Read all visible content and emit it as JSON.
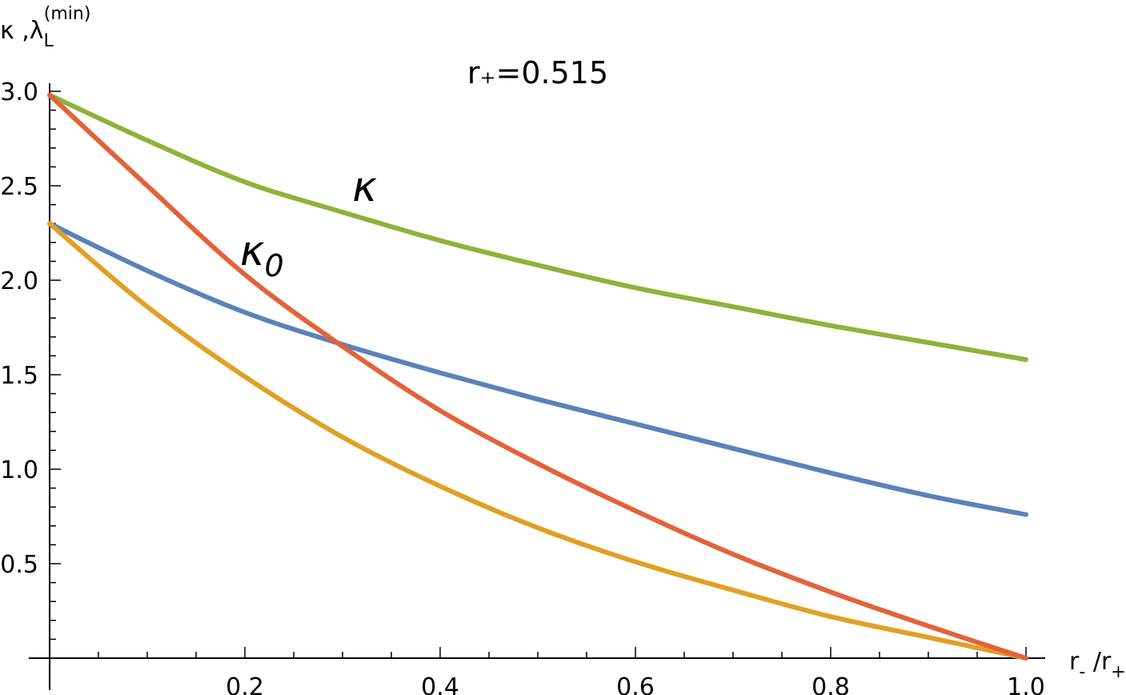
{
  "chart_data": {
    "type": "line",
    "title": "r₊=0.515",
    "xlabel": {
      "base": "r",
      "sub": "-",
      "sep": " /",
      "base2": "r",
      "sub2": "+"
    },
    "ylabel": {
      "base": "κ ,λ",
      "sub": "L",
      "sup": "(min)"
    },
    "xlim": [
      0,
      1
    ],
    "ylim": [
      0,
      3.1
    ],
    "x_ticks": [
      {
        "value": 0.2,
        "label": "0.2"
      },
      {
        "value": 0.4,
        "label": "0.4"
      },
      {
        "value": 0.6,
        "label": "0.6"
      },
      {
        "value": 0.8,
        "label": "0.8"
      },
      {
        "value": 1.0,
        "label": "1.0"
      }
    ],
    "y_ticks": [
      {
        "value": 0.5,
        "label": "0.5"
      },
      {
        "value": 1.0,
        "label": "1.0"
      },
      {
        "value": 1.5,
        "label": "1.5"
      },
      {
        "value": 2.0,
        "label": "2.0"
      },
      {
        "value": 2.5,
        "label": "2.5"
      },
      {
        "value": 3.0,
        "label": "3.0"
      }
    ],
    "x": [
      0,
      0.1,
      0.2,
      0.3,
      0.4,
      0.5,
      0.6,
      0.7,
      0.8,
      0.9,
      1.0
    ],
    "series": [
      {
        "name": "κ",
        "color": "#8db33a",
        "values": [
          2.98,
          2.74,
          2.52,
          2.36,
          2.21,
          2.08,
          1.96,
          1.86,
          1.76,
          1.67,
          1.58
        ]
      },
      {
        "name": "κ0",
        "color": "#e3623a",
        "values": [
          2.98,
          2.5,
          2.03,
          1.65,
          1.31,
          1.03,
          0.78,
          0.55,
          0.35,
          0.17,
          0.0
        ]
      },
      {
        "name": "",
        "color": "#5b82b9",
        "values": [
          2.3,
          2.05,
          1.83,
          1.66,
          1.51,
          1.37,
          1.24,
          1.11,
          0.98,
          0.86,
          0.76
        ]
      },
      {
        "name": "",
        "color": "#e1a023",
        "values": [
          2.3,
          1.86,
          1.49,
          1.17,
          0.91,
          0.69,
          0.51,
          0.36,
          0.22,
          0.11,
          0.0
        ]
      }
    ],
    "annotations": [
      {
        "text": "κ",
        "sub": "",
        "x": 0.31,
        "y": 2.42
      },
      {
        "text": "κ",
        "sub": "0",
        "x": 0.195,
        "y": 2.08
      }
    ],
    "grid": false,
    "legend": "none"
  }
}
